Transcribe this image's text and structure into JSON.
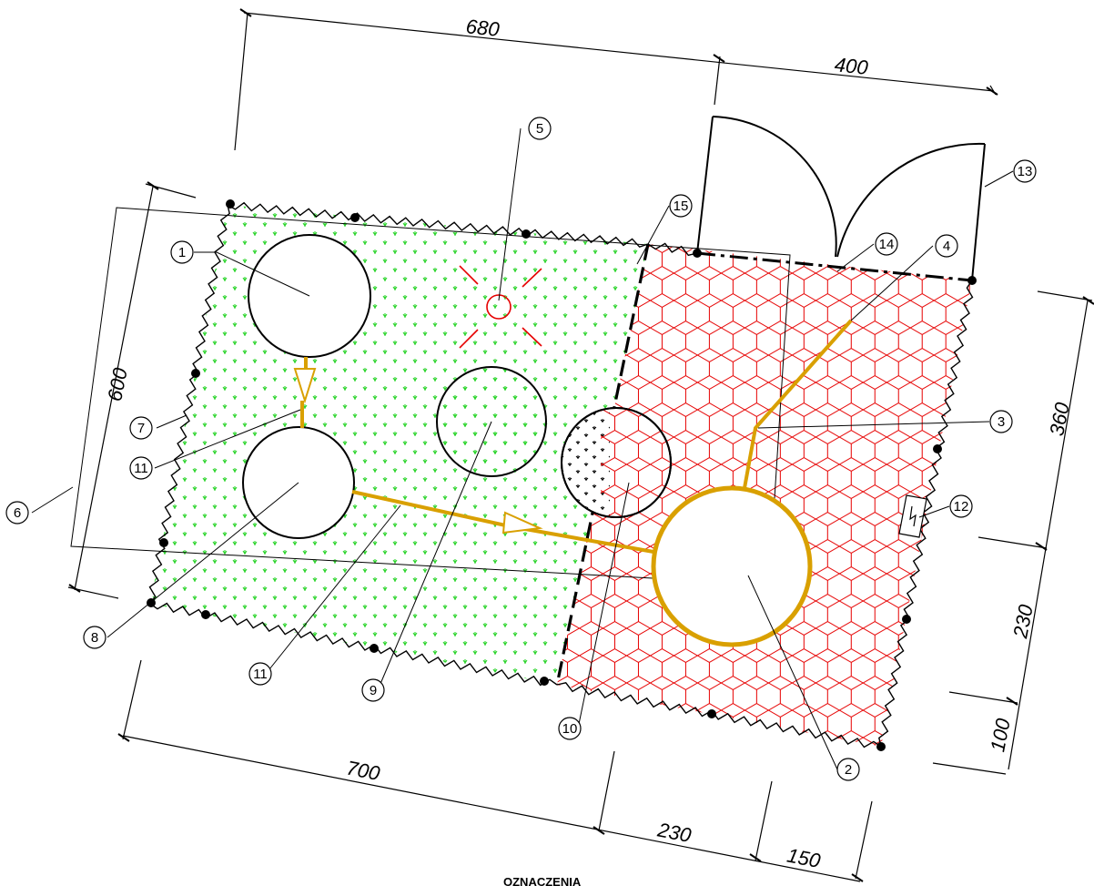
{
  "dimensions": {
    "top_left": "680",
    "top_right": "400",
    "left": "600",
    "right_top": "360",
    "right_mid": "230",
    "right_bottom": "100",
    "bottom_left": "700",
    "bottom_mid": "230",
    "bottom_right": "150"
  },
  "callouts": [
    "1",
    "2",
    "3",
    "4",
    "5",
    "6",
    "7",
    "8",
    "9",
    "10",
    "11",
    "12",
    "13",
    "14",
    "15"
  ],
  "legend_title": "OZNACZENIA",
  "colors": {
    "grass": "#2ad42a",
    "paving": "#e60000",
    "pipe": "#d9a000",
    "line": "#000000"
  }
}
